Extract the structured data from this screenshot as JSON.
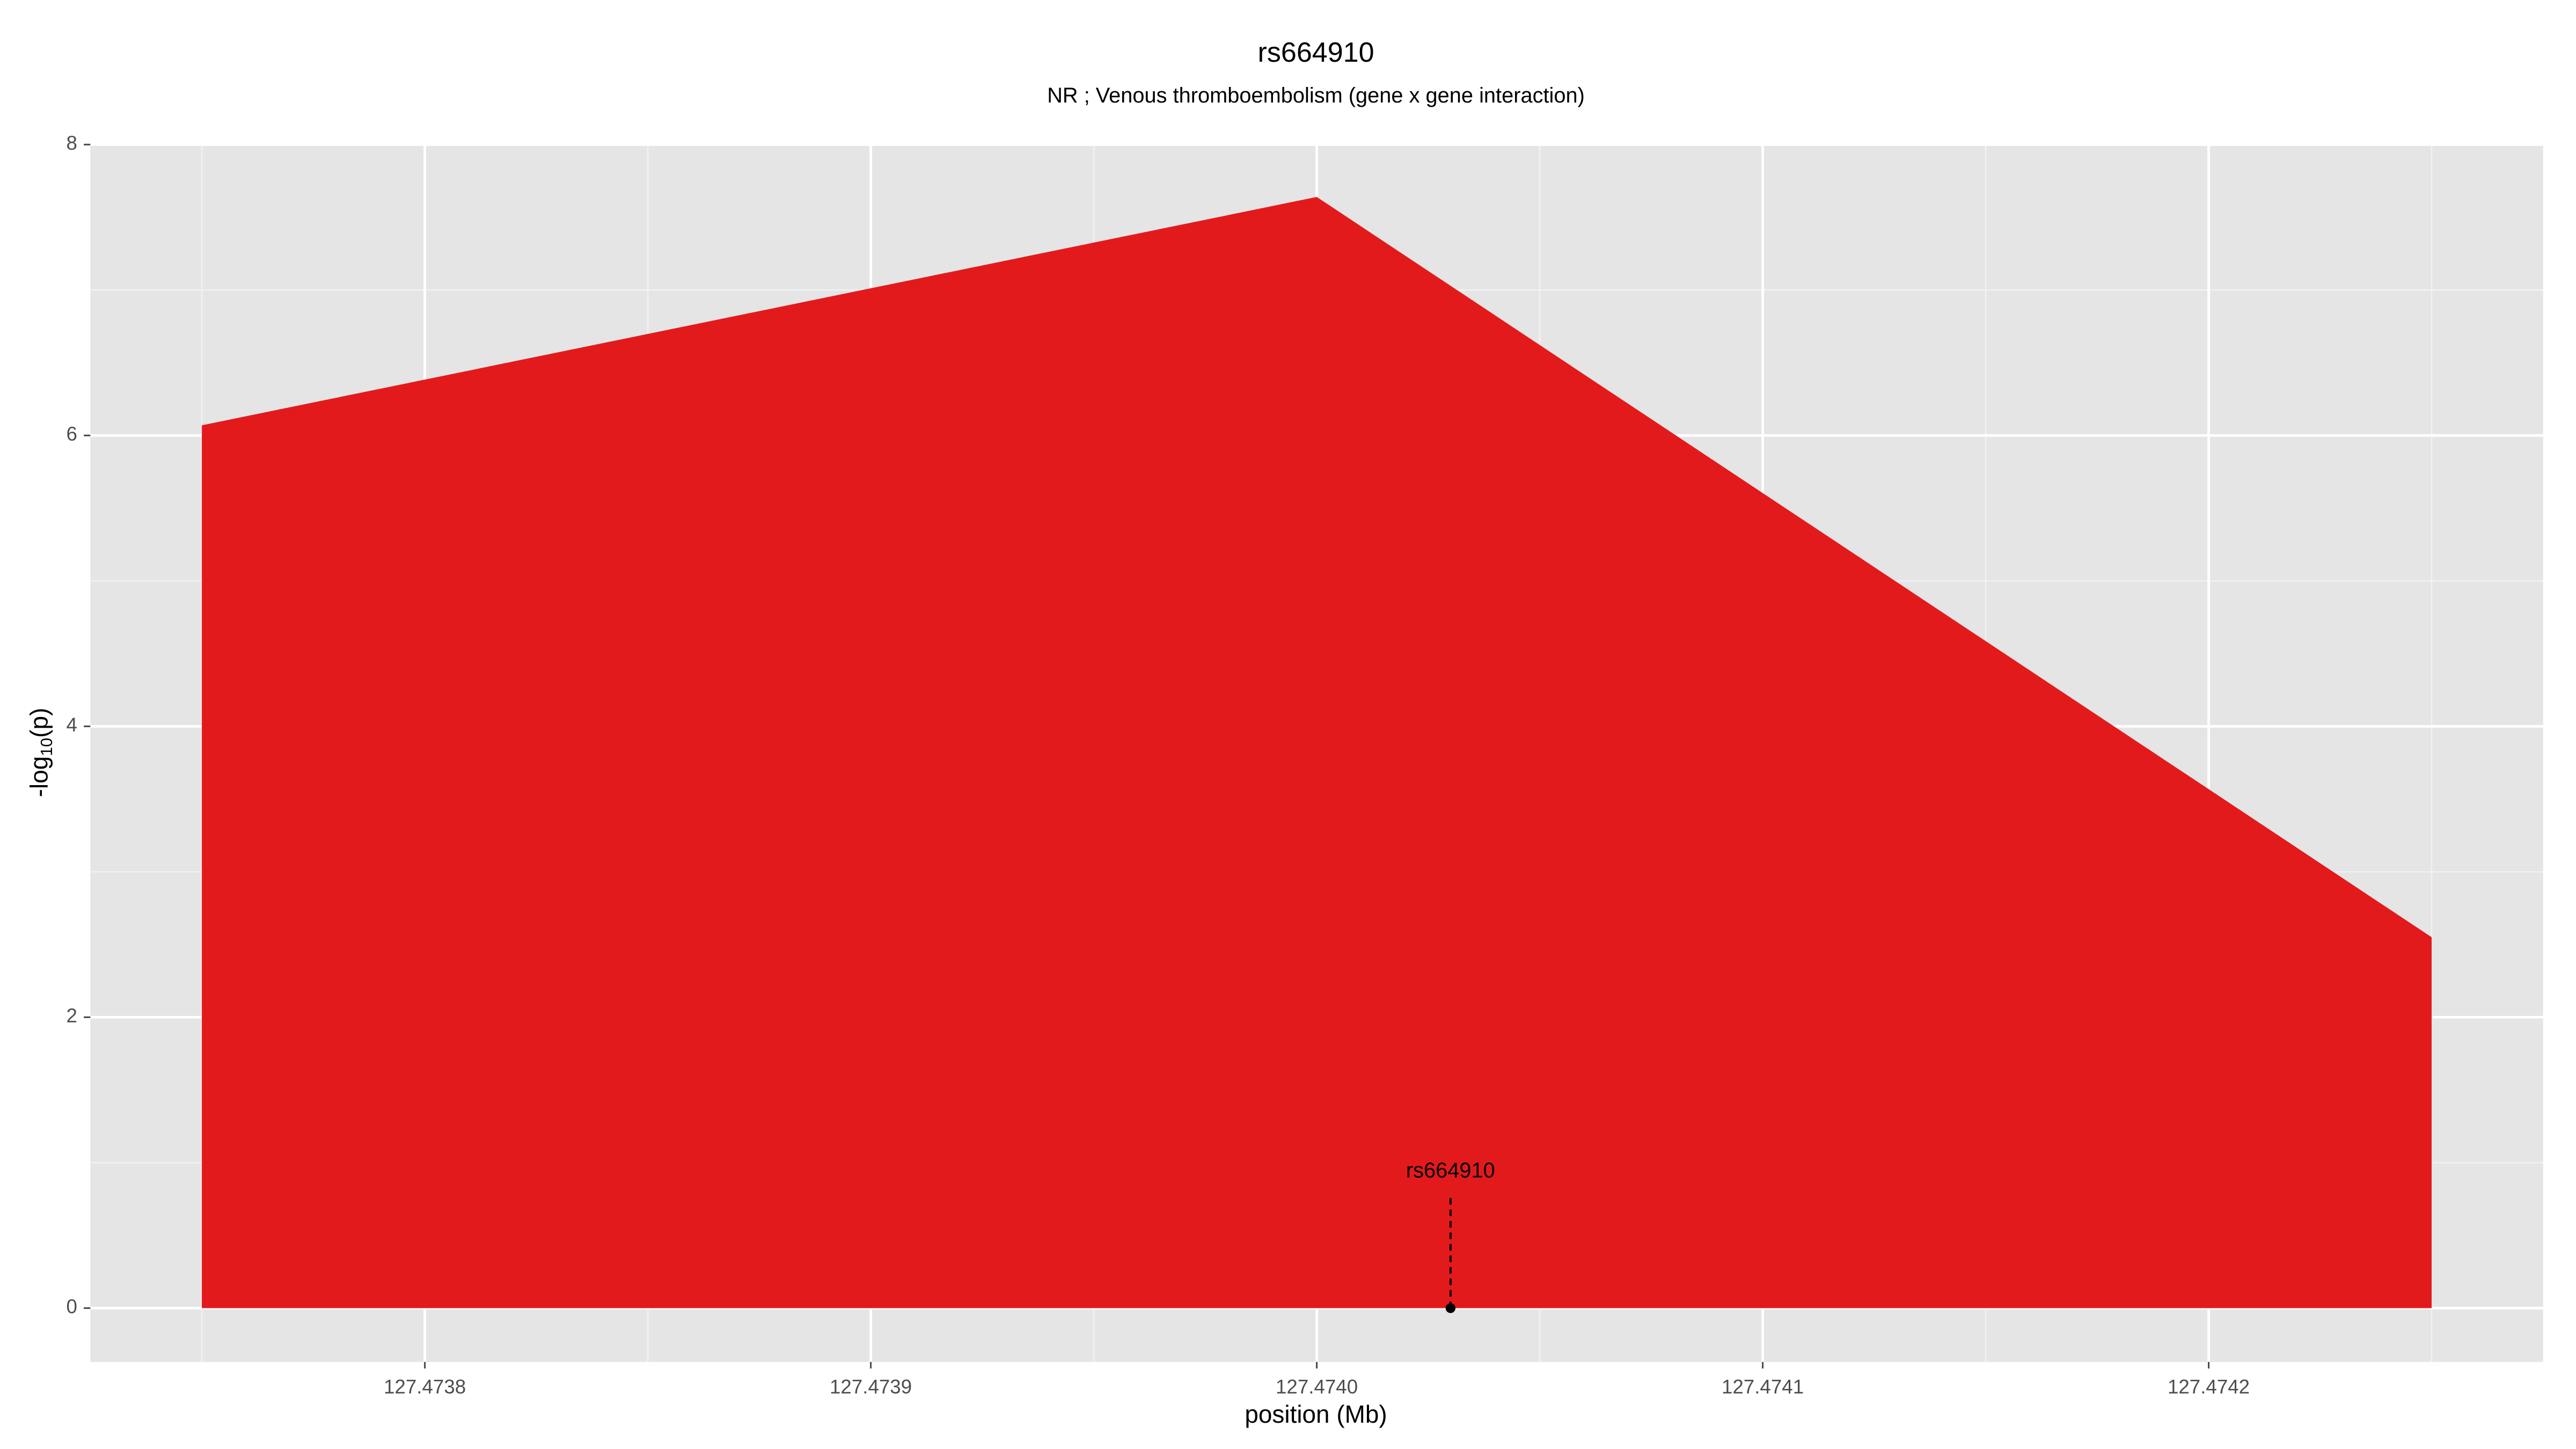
{
  "chart_data": {
    "type": "area",
    "title": "rs664910",
    "subtitle": "NR ; Venous thromboembolism (gene x gene interaction)",
    "x_label": "position (Mb)",
    "y_label_parts": [
      "-log",
      "10",
      "(p)"
    ],
    "x": [
      127.47375,
      127.474,
      127.47425
    ],
    "series": [
      {
        "color": "#e31a1c",
        "values": [
          6.07,
          7.64,
          2.55
        ]
      }
    ],
    "xlim": [
      127.473725,
      127.474275
    ],
    "xticks": [
      127.4738,
      127.4739,
      {
        "value": 127.474,
        "label": "127.4740"
      },
      127.4741,
      127.4742
    ],
    "ylim": [
      -0.37,
      8.0
    ],
    "yticks": [
      0,
      2,
      4,
      6,
      8
    ],
    "grid": true,
    "annotation": {
      "label": "rs664910",
      "x": 127.47403,
      "y": 0
    }
  }
}
